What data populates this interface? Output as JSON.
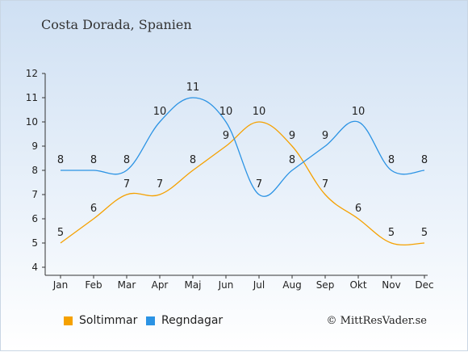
{
  "chart_data": {
    "type": "line",
    "title": "Costa Dorada, Spanien",
    "categories": [
      "Jan",
      "Feb",
      "Mar",
      "Apr",
      "Maj",
      "Jun",
      "Jul",
      "Aug",
      "Sep",
      "Okt",
      "Nov",
      "Dec"
    ],
    "ylim": [
      4,
      12
    ],
    "yticks": [
      4,
      5,
      6,
      7,
      8,
      9,
      10,
      11,
      12
    ],
    "grid": false,
    "legend_position": "bottom-left",
    "series": [
      {
        "name": "Soltimmar",
        "color": "#f5a100",
        "values": [
          5,
          6,
          7,
          7,
          8,
          9,
          10,
          9,
          7,
          6,
          5,
          5
        ]
      },
      {
        "name": "Regndagar",
        "color": "#2b93e4",
        "values": [
          8,
          8,
          8,
          10,
          11,
          10,
          7,
          8,
          9,
          10,
          8,
          8
        ]
      }
    ]
  },
  "credit": "© MittResVader.se"
}
